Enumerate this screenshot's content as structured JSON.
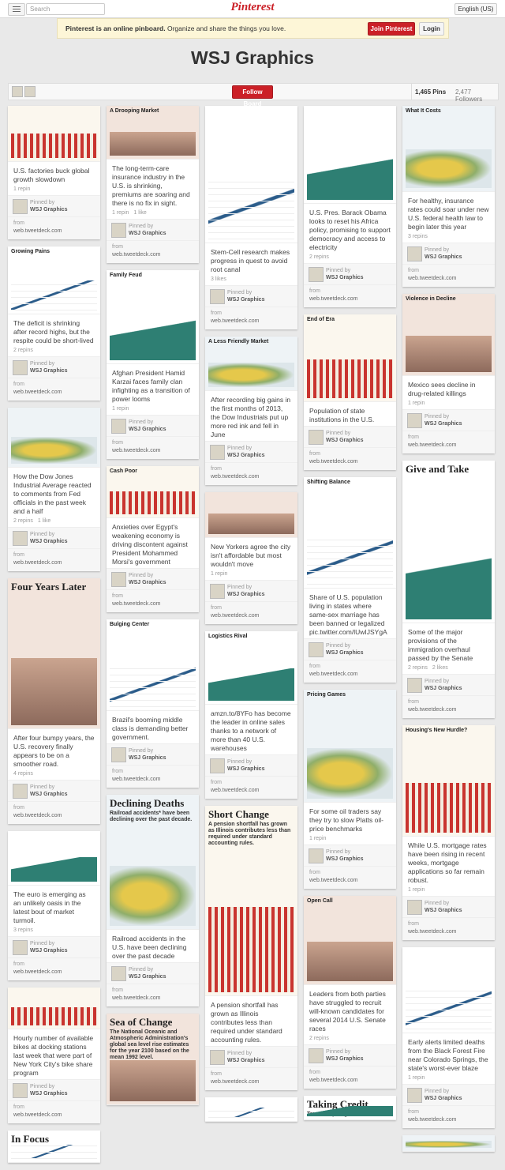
{
  "header": {
    "search_placeholder": "Search",
    "logo": "Pinterest",
    "language": "English (US)"
  },
  "banner": {
    "lead": "Pinterest is an online pinboard.",
    "text": "Organize and share the things you love.",
    "join": "Join Pinterest",
    "login": "Login"
  },
  "board": {
    "title": "WSJ Graphics",
    "follow": "Follow Board",
    "pins": "1,465 Pins",
    "followers": "2,477 Followers"
  },
  "pin_labels": {
    "pinned_by": "Pinned by",
    "pinner": "WSJ Graphics",
    "from": "from",
    "source": "web.tweetdeck.com"
  },
  "columns": [
    [
      {
        "caption": "U.S. factories buck global growth slowdown",
        "stats": [
          "1 repin"
        ]
      },
      {
        "headline": "Growing Pains",
        "caption": "The deficit is shrinking after record highs, but the respite could be short-lived",
        "stats": [
          "2 repins"
        ]
      },
      {
        "caption": "How the Dow Jones Industrial Average reacted to comments from Fed officials in the past week and a half",
        "stats": [
          "2 repins",
          "1 like"
        ]
      },
      {
        "headline": "Four Years Later",
        "caption": "After four bumpy years, the U.S. recovery finally appears to be on a smoother road.",
        "stats": [
          "4 repins"
        ]
      },
      {
        "caption": "The euro is emerging as an unlikely oasis in the latest bout of market turmoil.",
        "stats": [
          "3 repins"
        ]
      },
      {
        "caption": "Hourly number of available bikes at docking stations last week that were part of New York City's bike share program"
      },
      {
        "headline": "In Focus"
      }
    ],
    [
      {
        "headline": "A Drooping Market",
        "caption": "The long-term-care insurance industry in the U.S. is shrinking, premiums are soaring and there is no fix in sight.",
        "stats": [
          "1 repin",
          "1 like"
        ]
      },
      {
        "headline": "Family Feud",
        "caption": "Afghan President Hamid Karzai faces family clan infighting as a transition of power looms",
        "stats": [
          "1 repin"
        ]
      },
      {
        "headline": "Cash Poor",
        "caption": "Anxieties over Egypt's weakening economy is driving discontent against President Mohammed Morsi's government"
      },
      {
        "headline": "Bulging Center",
        "caption": "Brazil's booming middle class is demanding better government."
      },
      {
        "headline": "Declining Deaths",
        "sub": "Railroad accidents* have been declining over the past decade.",
        "caption": "Railroad accidents in the U.S. have been declining over the past decade"
      },
      {
        "headline": "Sea of Change",
        "sub": "The National Oceanic and Atmospheric Administration's global sea level rise estimates for the year 2100 based on the mean 1992 level."
      }
    ],
    [
      {
        "caption": "Stem-Cell research makes progress in quest to avoid root canal",
        "stats": [
          "3 likes"
        ]
      },
      {
        "headline": "A Less Friendly Market",
        "caption": "After recording big gains in the first months of 2013, the Dow Industrials put up more red ink and fell in June"
      },
      {
        "caption": "New Yorkers agree the city isn't affordable but most wouldn't move",
        "stats": [
          "1 repin"
        ]
      },
      {
        "headline": "Logistics Rival",
        "caption": "amzn.to/8YFo has become the leader in online sales thanks to a network of more than 40 U.S. warehouses"
      },
      {
        "headline": "Short Change",
        "sub": "A pension shortfall has grown as Illinois contributes less than required under standard accounting rules.",
        "caption": "A pension shortfall has grown as Illinois contributes less than required under standard accounting rules."
      },
      {}
    ],
    [
      {
        "caption": "U.S. Pres. Barack Obama looks to reset his Africa policy, promising to support democracy and access to electricity",
        "stats": [
          "2 repins"
        ]
      },
      {
        "headline": "End of Era",
        "caption": "Population of state institutions in the U.S."
      },
      {
        "headline": "Shifting Balance",
        "caption": "Share of U.S. population living in states where same-sex marriage has been banned or legalized pic.twitter.com/lUwIJSYgA"
      },
      {
        "headline": "Pricing Games",
        "caption": "For some oil traders say they try to slow Platts oil-price benchmarks",
        "stats": [
          "1 repin"
        ]
      },
      {
        "headline": "Open Call",
        "caption": "Leaders from both parties have struggled to recruit will-known candidates for several 2014 U.S. Senate races",
        "stats": [
          "2 repins"
        ]
      },
      {
        "headline": "Taking Credit",
        "sub": "Tax rates plunged in the first"
      }
    ],
    [
      {
        "headline": "What It Costs",
        "caption": "For healthy, insurance rates could soar under new U.S. federal health law to begin later this year",
        "stats": [
          "3 repins"
        ]
      },
      {
        "headline": "Violence in Decline",
        "caption": "Mexico sees decline in drug-related killings",
        "stats": [
          "1 repin"
        ]
      },
      {
        "headline": "Give and Take",
        "caption": "Some of the major provisions of the immigration overhaul passed by the Senate",
        "stats": [
          "2 repins",
          "2 likes"
        ]
      },
      {
        "headline": "Housing's New Hurdle?",
        "caption": "While U.S. mortgage rates have been rising in recent weeks, mortgage applications so far remain robust.",
        "stats": [
          "1 repin"
        ]
      },
      {
        "caption": "Early alerts limited deaths from the Black Forest Fire near Colorado Springs, the state's worst-ever blaze",
        "stats": [
          "1 repin"
        ]
      },
      {}
    ]
  ]
}
